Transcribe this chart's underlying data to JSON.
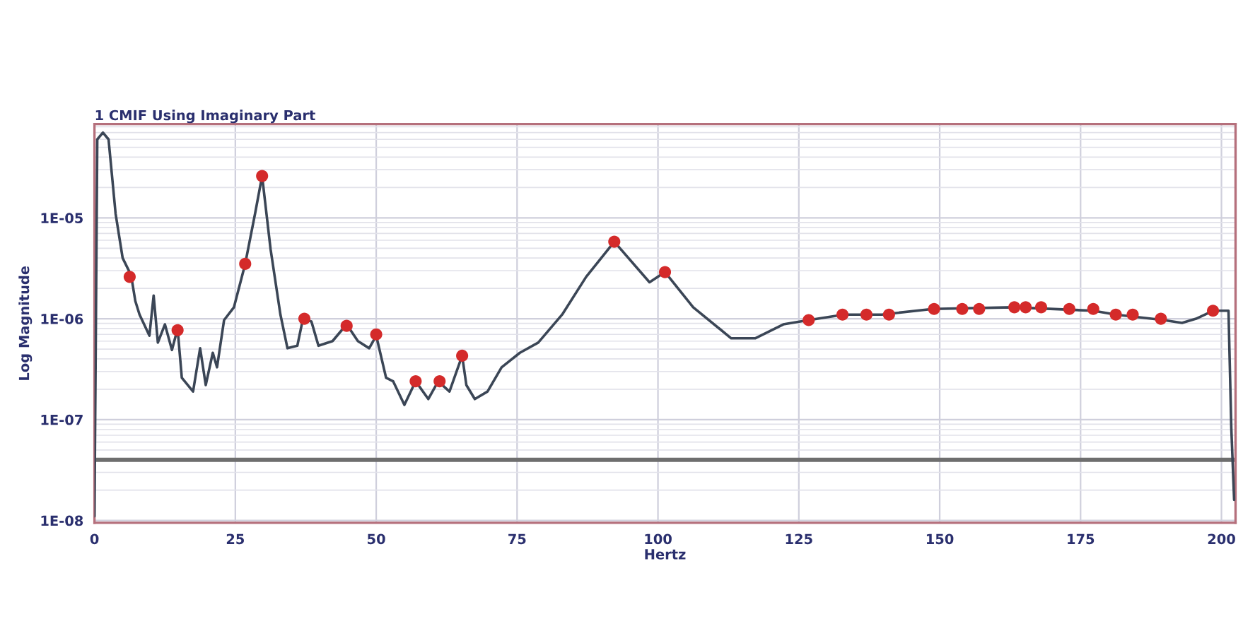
{
  "chart_data": {
    "type": "line",
    "title": "1 CMIF Using Imaginary Part",
    "xlabel": "Hertz",
    "ylabel": "Log Magnitude",
    "log": "y",
    "grid": true,
    "legend": false,
    "xlim": [
      0,
      202.5
    ],
    "ylim": [
      9.5e-09,
      8.5e-05
    ],
    "xticks": [
      0,
      25,
      50,
      75,
      100,
      125,
      150,
      175,
      200
    ],
    "yticks": [
      {
        "value": 1e-08,
        "label": "1E-08"
      },
      {
        "value": 1e-07,
        "label": "1E-07"
      },
      {
        "value": 1e-06,
        "label": "1E-06"
      },
      {
        "value": 1e-05,
        "label": "1E-05"
      }
    ],
    "ref_lines": [
      {
        "axis": "y",
        "value": 4e-08,
        "label": null,
        "color": "#6e6e6e"
      }
    ],
    "series": [
      {
        "color": "#3b4656",
        "marker": "none",
        "line_style": "solid",
        "x": [
          0,
          0.5,
          1.5,
          2.5,
          3.75,
          5,
          6.5,
          7.25,
          8,
          9.75,
          10.5,
          11.25,
          12.5,
          13.75,
          14.75,
          15.5,
          17.5,
          18.75,
          19.75,
          21,
          21.75,
          23,
          24.75,
          26.75,
          28.5,
          29.75,
          31.25,
          33,
          34.25,
          36,
          37,
          38.5,
          39.75,
          42.25,
          44.75,
          46.75,
          48.75,
          50,
          51.75,
          53,
          55,
          57,
          59.25,
          61,
          63,
          65.25,
          66,
          67.5,
          69.75,
          72.25,
          75.5,
          78.75,
          83,
          87.25,
          92.25,
          98.5,
          101.25,
          106.25,
          113,
          117.25,
          122.25,
          126.75,
          133,
          139.75,
          148.75,
          163,
          177.25,
          181.25,
          189.75,
          193,
          195.5,
          198.5,
          201.25,
          201.75,
          202.25
        ],
        "values": [
          1.1e-08,
          6e-05,
          7e-05,
          6e-05,
          1.1e-05,
          4e-06,
          2.7e-06,
          1.5e-06,
          1.1e-06,
          6.8e-07,
          1.7e-06,
          5.8e-07,
          8.8e-07,
          4.9e-07,
          8e-07,
          2.6e-07,
          1.9e-07,
          5.1e-07,
          2.2e-07,
          4.6e-07,
          3.3e-07,
          9.7e-07,
          1.3e-06,
          3.5e-06,
          1.1e-05,
          2.6e-05,
          4.9e-06,
          1.1e-06,
          5.1e-07,
          5.4e-07,
          1e-06,
          9.4e-07,
          5.4e-07,
          6e-07,
          8.8e-07,
          6e-07,
          5.1e-07,
          6.8e-07,
          2.6e-07,
          2.4e-07,
          1.4e-07,
          2.4e-07,
          1.6e-07,
          2.4e-07,
          1.9e-07,
          4.3e-07,
          2.2e-07,
          1.6e-07,
          1.9e-07,
          3.3e-07,
          4.6e-07,
          5.8e-07,
          1.1e-06,
          2.6e-06,
          5.8e-06,
          2.3e-06,
          2.9e-06,
          1.3e-06,
          6.4e-07,
          6.4e-07,
          8.8e-07,
          9.7e-07,
          1.1e-06,
          1.1e-06,
          1.25e-06,
          1.3e-06,
          1.2e-06,
          1.1e-06,
          9.7e-07,
          9.1e-07,
          1e-06,
          1.2e-06,
          1.2e-06,
          8.2e-08,
          1.6e-08
        ]
      },
      {
        "type": "scatter",
        "color": "#d42a2a",
        "marker": "circle",
        "x": [
          6.25,
          14.75,
          26.75,
          29.75,
          37.25,
          44.75,
          50,
          57,
          61.25,
          65.25,
          92.25,
          101.25,
          126.75,
          132.75,
          137,
          141,
          149,
          154,
          157,
          163.25,
          165.25,
          168,
          173,
          177.25,
          181.25,
          184.25,
          189.25,
          198.5
        ],
        "values": [
          2.6e-06,
          7.7e-07,
          3.5e-06,
          2.6e-05,
          1e-06,
          8.5e-07,
          7e-07,
          2.4e-07,
          2.4e-07,
          4.3e-07,
          5.8e-06,
          2.9e-06,
          9.7e-07,
          1.1e-06,
          1.1e-06,
          1.1e-06,
          1.25e-06,
          1.25e-06,
          1.25e-06,
          1.3e-06,
          1.3e-06,
          1.3e-06,
          1.25e-06,
          1.25e-06,
          1.1e-06,
          1.1e-06,
          1e-06,
          1.2e-06
        ]
      }
    ]
  }
}
